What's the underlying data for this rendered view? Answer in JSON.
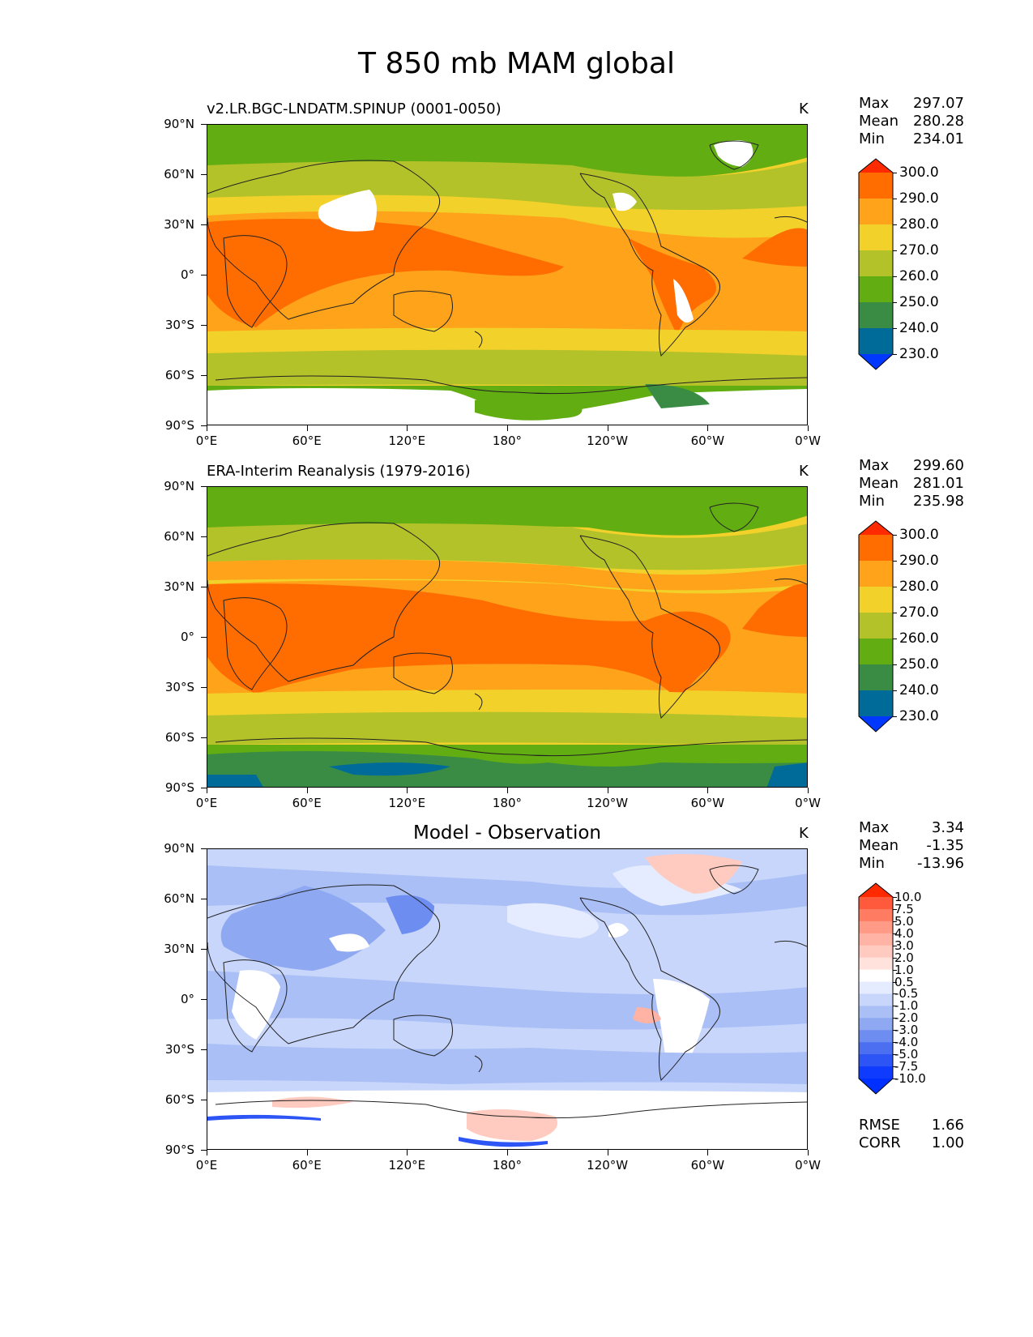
{
  "title": "T 850 mb MAM global",
  "axes": {
    "lat_labels": [
      "90°N",
      "60°N",
      "30°N",
      "0°",
      "30°S",
      "60°S",
      "90°S"
    ],
    "lon_labels": [
      "0°E",
      "60°E",
      "120°E",
      "180°",
      "120°W",
      "60°W",
      "0°W"
    ]
  },
  "panels": [
    {
      "title": "v2.LR.BGC-LNDATM.SPINUP (0001-0050)",
      "units": "K",
      "stats": {
        "max_label": "Max",
        "max": "297.07",
        "mean_label": "Mean",
        "mean": "280.28",
        "min_label": "Min",
        "min": "234.01"
      },
      "colorbar": [
        "300.0",
        "290.0",
        "280.0",
        "270.0",
        "260.0",
        "250.0",
        "240.0",
        "230.0"
      ]
    },
    {
      "title": "ERA-Interim Reanalysis (1979-2016)",
      "units": "K",
      "stats": {
        "max_label": "Max",
        "max": "299.60",
        "mean_label": "Mean",
        "mean": "281.01",
        "min_label": "Min",
        "min": "235.98"
      },
      "colorbar": [
        "300.0",
        "290.0",
        "280.0",
        "270.0",
        "260.0",
        "250.0",
        "240.0",
        "230.0"
      ]
    },
    {
      "title": "Model - Observation",
      "units": "K",
      "stats": {
        "max_label": "Max",
        "max": "3.34",
        "mean_label": "Mean",
        "mean": "-1.35",
        "min_label": "Min",
        "min": "-13.96"
      },
      "colorbar": [
        "10.0",
        "7.5",
        "5.0",
        "4.0",
        "3.0",
        "2.0",
        "1.0",
        "0.5",
        "-0.5",
        "-1.0",
        "-2.0",
        "-3.0",
        "-4.0",
        "-5.0",
        "-7.5",
        "-10.0"
      ],
      "metrics": {
        "rmse_label": "RMSE",
        "rmse": "1.66",
        "corr_label": "CORR",
        "corr": "1.00"
      }
    }
  ],
  "colors": {
    "abs_scale": [
      "#ff2a00",
      "#ff6d00",
      "#ffa31a",
      "#f2d12a",
      "#b4c22a",
      "#62ad12",
      "#3a8c45",
      "#006b99",
      "#0038ff"
    ],
    "diff_scale": [
      "#ff2a00",
      "#ff5a3c",
      "#ff7c62",
      "#ff9a86",
      "#ffb3a4",
      "#ffcbc0",
      "#ffe2dc",
      "#ffffff",
      "#e6ecff",
      "#c9d6fb",
      "#aabff6",
      "#8ea8f2",
      "#6d8df0",
      "#4c6ff2",
      "#2d55f5",
      "#0f3bff",
      "#0030ff"
    ],
    "coast": "#222222"
  }
}
